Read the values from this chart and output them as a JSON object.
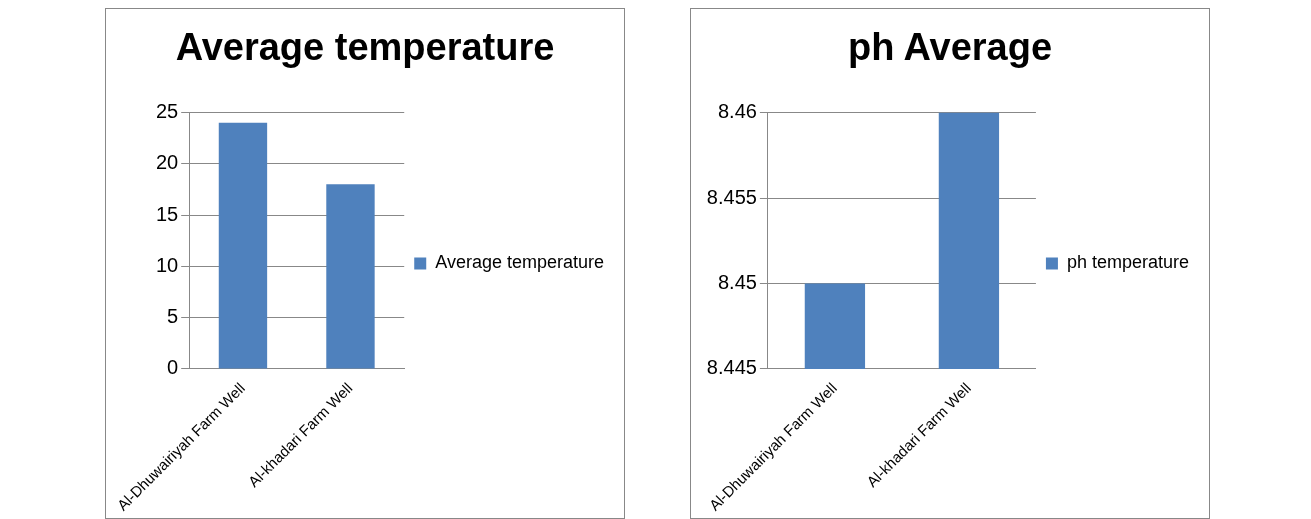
{
  "chart_data": [
    {
      "type": "bar",
      "title": "Average temperature",
      "categories": [
        "Al-Dhuwairiyah Farm Well",
        "Al-khadari Farm Well"
      ],
      "series": [
        {
          "name": "Average temperature",
          "color": "#4f81bd",
          "values": [
            24,
            18
          ]
        }
      ],
      "ylim": [
        0,
        25
      ],
      "yticks": [
        0,
        5,
        10,
        15,
        20,
        25
      ],
      "grid": "y",
      "legend": "right"
    },
    {
      "type": "bar",
      "title": "ph Average",
      "categories": [
        "Al-Dhuwairiyah Farm Well",
        "Al-khadari Farm Well"
      ],
      "series": [
        {
          "name": "ph temperature",
          "color": "#4f81bd",
          "values": [
            8.45,
            8.46
          ]
        }
      ],
      "ylim": [
        8.445,
        8.46
      ],
      "yticks": [
        8.445,
        8.45,
        8.455,
        8.46
      ],
      "grid": "y",
      "legend": "right"
    }
  ]
}
